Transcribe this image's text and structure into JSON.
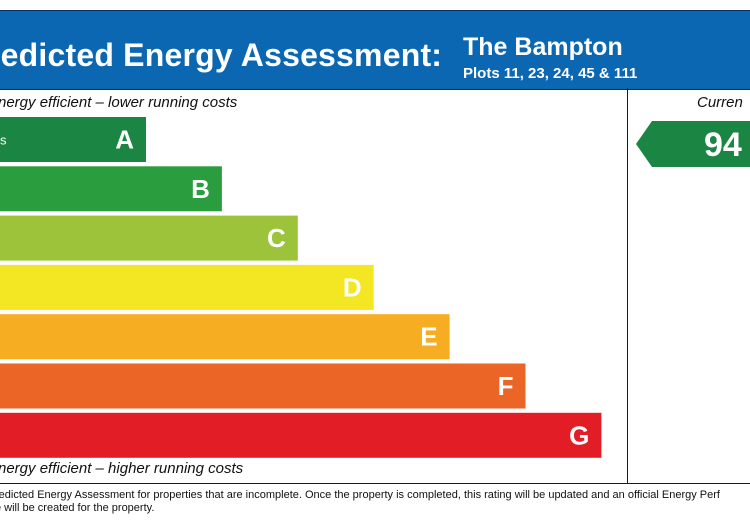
{
  "header": {
    "title": "redicted Energy Assessment:",
    "property_name": "The Bampton",
    "plots": "Plots 11, 23, 24, 45 & 111",
    "background": "#0b67b2"
  },
  "captions": {
    "top": "nergy efficient – lower running costs",
    "bottom": "nergy efficient – higher running costs",
    "current_header": "Curren"
  },
  "chart_data": {
    "type": "bar",
    "categories": [
      "A",
      "B",
      "C",
      "D",
      "E",
      "F",
      "G"
    ],
    "colors": [
      "#1b8643",
      "#2a9e3f",
      "#9dc33b",
      "#f3e623",
      "#f7ad22",
      "#ea6526",
      "#e21d25"
    ],
    "band_range_fragment": "s",
    "current": {
      "value": 94,
      "band": "A",
      "color": "#1b8643"
    }
  },
  "footnote": {
    "line1": "redicted Energy Assessment for properties that are incomplete. Once the property is completed, this rating will be updated and an official Energy Perf",
    "line2": "e will be created for the property."
  }
}
